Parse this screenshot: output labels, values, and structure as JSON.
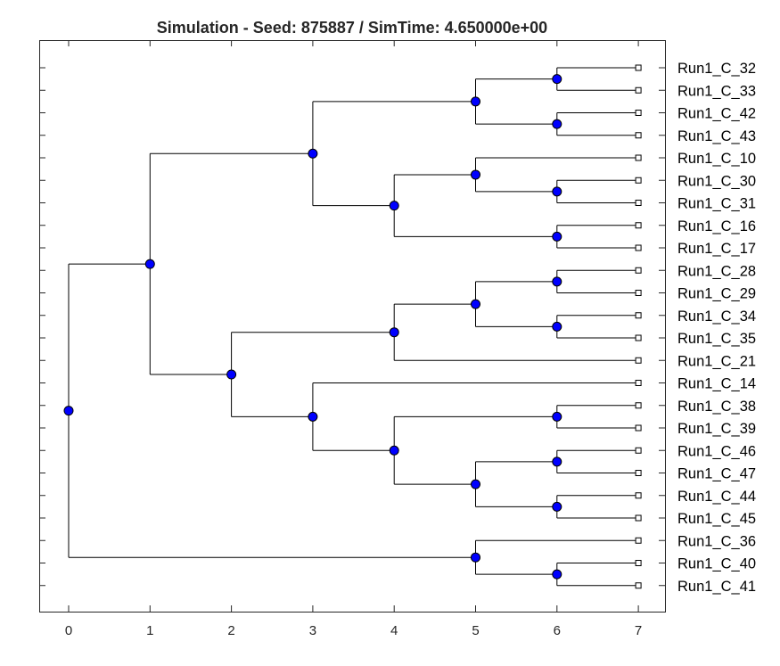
{
  "title": "Simulation - Seed: 875887 / SimTime: 4.650000e+00",
  "chart_data": {
    "type": "dendrogram",
    "x_ticks": [
      "0",
      "1",
      "2",
      "3",
      "4",
      "5",
      "6",
      "7"
    ],
    "xlim": [
      -0.35,
      7.35
    ],
    "leaves": [
      "Run1_C_32",
      "Run1_C_33",
      "Run1_C_42",
      "Run1_C_43",
      "Run1_C_10",
      "Run1_C_30",
      "Run1_C_31",
      "Run1_C_16",
      "Run1_C_17",
      "Run1_C_28",
      "Run1_C_29",
      "Run1_C_34",
      "Run1_C_35",
      "Run1_C_21",
      "Run1_C_14",
      "Run1_C_38",
      "Run1_C_39",
      "Run1_C_46",
      "Run1_C_47",
      "Run1_C_44",
      "Run1_C_45",
      "Run1_C_36",
      "Run1_C_40",
      "Run1_C_41"
    ],
    "leaf_depth": 7,
    "tree": {
      "depth": 0,
      "children": [
        {
          "depth": 1,
          "children": [
            {
              "depth": 3,
              "children": [
                {
                  "depth": 5,
                  "children": [
                    {
                      "depth": 6,
                      "children": [
                        {
                          "leaf": "Run1_C_32"
                        },
                        {
                          "leaf": "Run1_C_33"
                        }
                      ]
                    },
                    {
                      "depth": 6,
                      "children": [
                        {
                          "leaf": "Run1_C_42"
                        },
                        {
                          "leaf": "Run1_C_43"
                        }
                      ]
                    }
                  ]
                },
                {
                  "depth": 4,
                  "children": [
                    {
                      "depth": 5,
                      "children": [
                        {
                          "leaf": "Run1_C_10"
                        },
                        {
                          "depth": 6,
                          "children": [
                            {
                              "leaf": "Run1_C_30"
                            },
                            {
                              "leaf": "Run1_C_31"
                            }
                          ]
                        }
                      ]
                    },
                    {
                      "depth": 6,
                      "children": [
                        {
                          "leaf": "Run1_C_16"
                        },
                        {
                          "leaf": "Run1_C_17"
                        }
                      ]
                    }
                  ]
                }
              ]
            },
            {
              "depth": 2,
              "children": [
                {
                  "depth": 4,
                  "children": [
                    {
                      "depth": 5,
                      "children": [
                        {
                          "depth": 6,
                          "children": [
                            {
                              "leaf": "Run1_C_28"
                            },
                            {
                              "leaf": "Run1_C_29"
                            }
                          ]
                        },
                        {
                          "depth": 6,
                          "children": [
                            {
                              "leaf": "Run1_C_34"
                            },
                            {
                              "leaf": "Run1_C_35"
                            }
                          ]
                        }
                      ]
                    },
                    {
                      "leaf": "Run1_C_21"
                    }
                  ]
                },
                {
                  "depth": 3,
                  "children": [
                    {
                      "leaf": "Run1_C_14"
                    },
                    {
                      "depth": 4,
                      "children": [
                        {
                          "depth": 6,
                          "children": [
                            {
                              "leaf": "Run1_C_38"
                            },
                            {
                              "leaf": "Run1_C_39"
                            }
                          ]
                        },
                        {
                          "depth": 5,
                          "children": [
                            {
                              "depth": 6,
                              "children": [
                                {
                                  "leaf": "Run1_C_46"
                                },
                                {
                                  "leaf": "Run1_C_47"
                                }
                              ]
                            },
                            {
                              "depth": 6,
                              "children": [
                                {
                                  "leaf": "Run1_C_44"
                                },
                                {
                                  "leaf": "Run1_C_45"
                                }
                              ]
                            }
                          ]
                        }
                      ]
                    }
                  ]
                }
              ]
            }
          ]
        },
        {
          "depth": 5,
          "children": [
            {
              "leaf": "Run1_C_36"
            },
            {
              "depth": 6,
              "children": [
                {
                  "leaf": "Run1_C_40"
                },
                {
                  "leaf": "Run1_C_41"
                }
              ]
            }
          ]
        }
      ]
    },
    "colors": {
      "node": "#0000ff",
      "leaf": "#ffffff",
      "branch": "#000000"
    }
  }
}
